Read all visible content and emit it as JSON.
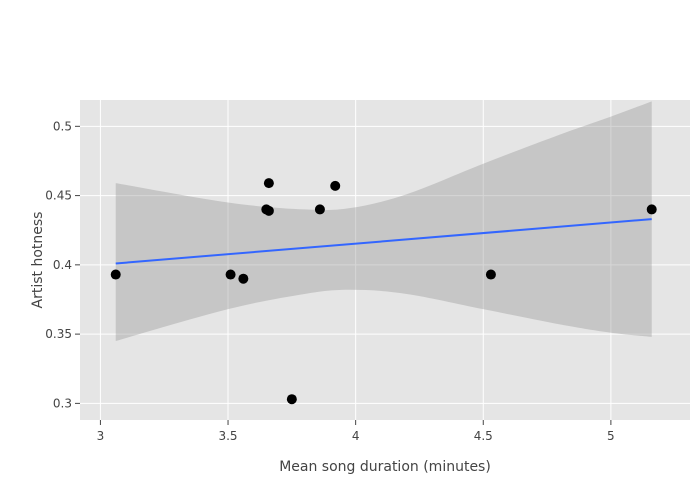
{
  "chart_data": {
    "type": "scatter",
    "title": "",
    "xlabel": "Mean song duration (minutes)",
    "ylabel": "Artist hotness",
    "xlim": [
      2.92,
      5.31
    ],
    "ylim": [
      0.288,
      0.519
    ],
    "x_ticks": [
      3,
      3.5,
      4,
      4.5,
      5
    ],
    "x_tick_labels": [
      "3",
      "3.5",
      "4",
      "4.5",
      "5"
    ],
    "y_ticks": [
      0.3,
      0.35,
      0.4,
      0.45,
      0.5
    ],
    "y_tick_labels": [
      "0.3",
      "0.35",
      "0.4",
      "0.45",
      "0.5"
    ],
    "grid": true,
    "legend": "none",
    "points": [
      {
        "x": 3.06,
        "y": 0.393
      },
      {
        "x": 3.51,
        "y": 0.393
      },
      {
        "x": 3.56,
        "y": 0.39
      },
      {
        "x": 3.65,
        "y": 0.44
      },
      {
        "x": 3.66,
        "y": 0.439
      },
      {
        "x": 3.66,
        "y": 0.459
      },
      {
        "x": 3.75,
        "y": 0.303
      },
      {
        "x": 3.86,
        "y": 0.44
      },
      {
        "x": 3.92,
        "y": 0.457
      },
      {
        "x": 4.53,
        "y": 0.393
      },
      {
        "x": 5.16,
        "y": 0.44
      }
    ],
    "fit_line": {
      "x": [
        3.06,
        5.16
      ],
      "y": [
        0.401,
        0.433
      ]
    },
    "confidence_band": {
      "x": [
        3.06,
        3.5,
        3.8,
        3.98,
        4.2,
        4.5,
        4.8,
        5.0,
        5.16
      ],
      "upper": [
        0.459,
        0.445,
        0.44,
        0.441,
        0.451,
        0.473,
        0.494,
        0.507,
        0.518
      ],
      "lower": [
        0.345,
        0.368,
        0.379,
        0.382,
        0.379,
        0.368,
        0.357,
        0.351,
        0.348
      ]
    },
    "colors": {
      "plot_background": "#e5e5e5",
      "grid": "#ffffff",
      "points": "#000000",
      "fit_line": "#3366ff",
      "band": "#999999"
    }
  }
}
